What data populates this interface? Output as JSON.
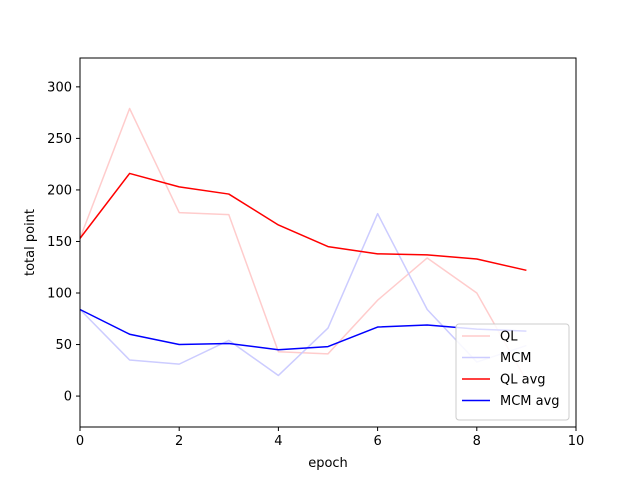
{
  "chart_data": {
    "type": "line",
    "title": "",
    "xlabel": "epoch",
    "ylabel": "total point",
    "xlim": [
      0,
      10
    ],
    "ylim": [
      -30,
      328
    ],
    "x_ticks": [
      0,
      2,
      4,
      6,
      8,
      10
    ],
    "y_ticks": [
      0,
      50,
      100,
      150,
      200,
      250,
      300
    ],
    "grid": false,
    "legend_position": "lower-right",
    "x": [
      0,
      1,
      2,
      3,
      4,
      5,
      6,
      7,
      8,
      9
    ],
    "series": [
      {
        "name": "QL",
        "color": "#ffcccc",
        "values": [
          153,
          279,
          178,
          176,
          43,
          41,
          93,
          134,
          100,
          15
        ]
      },
      {
        "name": "MCM",
        "color": "#ccccff",
        "values": [
          84,
          35,
          31,
          54,
          20,
          66,
          177,
          84,
          33,
          49
        ]
      },
      {
        "name": "QL avg",
        "color": "#ff0000",
        "values": [
          153,
          216,
          203,
          196,
          166,
          145,
          138,
          137,
          133,
          122
        ]
      },
      {
        "name": "MCM avg",
        "color": "#0000ff",
        "values": [
          84,
          60,
          50,
          51,
          45,
          48,
          67,
          69,
          65,
          63
        ]
      }
    ]
  }
}
